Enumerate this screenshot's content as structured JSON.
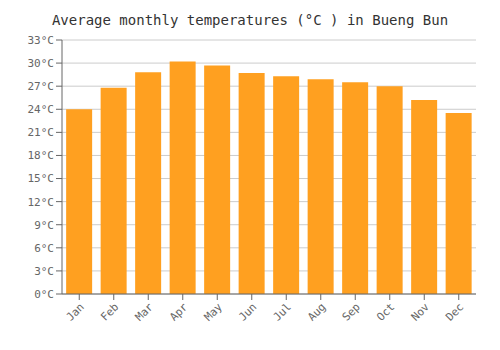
{
  "chart_data": {
    "type": "bar",
    "title": "Average monthly temperatures (°C ) in Bueng Bun",
    "categories": [
      "Jan",
      "Feb",
      "Mar",
      "Apr",
      "May",
      "Jun",
      "Jul",
      "Aug",
      "Sep",
      "Oct",
      "Nov",
      "Dec"
    ],
    "values": [
      24.0,
      26.8,
      28.8,
      30.2,
      29.7,
      28.7,
      28.3,
      27.9,
      27.5,
      27.0,
      25.2,
      23.5
    ],
    "color": "#FFA020",
    "ylim": [
      0,
      33
    ],
    "yticks": [
      {
        "value": 0,
        "label": "0°C"
      },
      {
        "value": 3,
        "label": "3°C"
      },
      {
        "value": 6,
        "label": "6°C"
      },
      {
        "value": 9,
        "label": "9°C"
      },
      {
        "value": 12,
        "label": "12°C"
      },
      {
        "value": 15,
        "label": "15°C"
      },
      {
        "value": 18,
        "label": "18°C"
      },
      {
        "value": 21,
        "label": "21°C"
      },
      {
        "value": 24,
        "label": "24°C"
      },
      {
        "value": 27,
        "label": "27°C"
      },
      {
        "value": 30,
        "label": "30°C"
      },
      {
        "value": 33,
        "label": "33°C"
      }
    ],
    "grid": true
  }
}
